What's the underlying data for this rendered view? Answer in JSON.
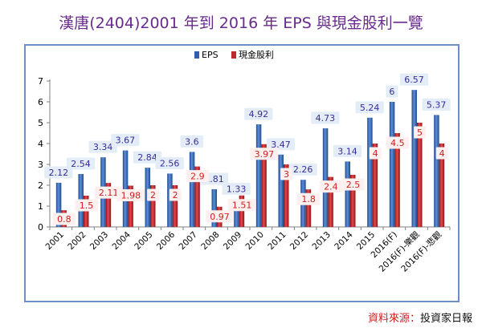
{
  "chart_data": {
    "type": "bar",
    "title": "漢唐(2404)2001 年到 2016 年 EPS 與現金股利一覽",
    "categories": [
      "2001",
      "2002",
      "2003",
      "2004",
      "2005",
      "2006",
      "2007",
      "2008",
      "2009",
      "2010",
      "2011",
      "2012",
      "2013",
      "2014",
      "2015",
      "2016(F)",
      "2016(F)-樂觀",
      "2016(F)-悲觀"
    ],
    "series": [
      {
        "name": "EPS",
        "color": "#2f5fa8",
        "values": [
          2.12,
          2.54,
          3.34,
          3.67,
          2.84,
          2.56,
          3.6,
          1.81,
          1.33,
          4.92,
          3.47,
          2.26,
          4.73,
          3.14,
          5.24,
          6,
          6.57,
          5.37
        ]
      },
      {
        "name": "現金股利",
        "color": "#c0282d",
        "values": [
          0.8,
          1.5,
          2.11,
          1.98,
          2,
          2,
          2.9,
          0.97,
          1.51,
          3.97,
          3,
          1.8,
          2.4,
          2.5,
          4,
          4.5,
          5,
          4
        ]
      }
    ],
    "ylim": [
      0,
      7
    ],
    "yticks": [
      0,
      1,
      2,
      3,
      4,
      5,
      6,
      7
    ],
    "xlabel": "",
    "ylabel": "",
    "legend": "top-left"
  },
  "source": {
    "label": "資料來源：",
    "value": "投資家日報"
  }
}
